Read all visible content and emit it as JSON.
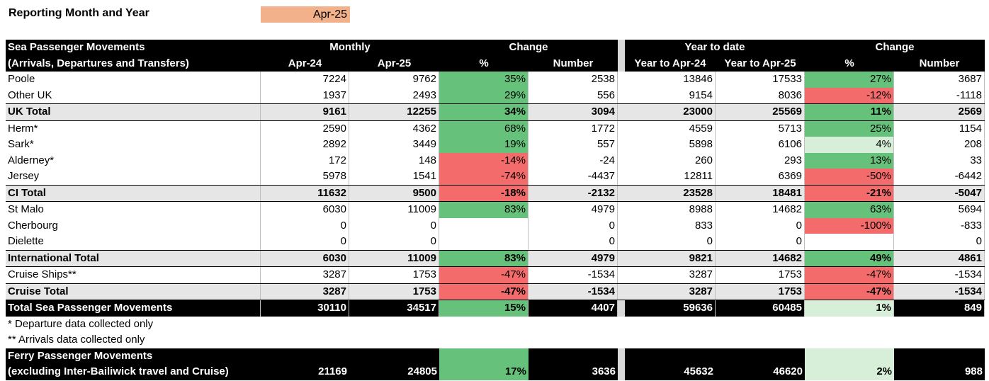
{
  "reporting": {
    "label": "Reporting Month and Year",
    "value": "Apr-25"
  },
  "header": {
    "row1": {
      "title": "Sea Passenger Movements",
      "monthly": "Monthly",
      "change": "Change",
      "ytd": "Year to date",
      "change2": "Change"
    },
    "row2": {
      "title": "(Arrivals, Departures and Transfers)",
      "c1": "Apr-24",
      "c2": "Apr-25",
      "c3": "%",
      "c4": "Number",
      "c5": "Year to Apr-24",
      "c6": "Year to Apr-25",
      "c7": "%",
      "c8": "Number"
    }
  },
  "rows": [
    {
      "name": "Poole",
      "v": [
        "7224",
        "9762",
        "35%",
        "2538",
        "13846",
        "17533",
        "27%",
        "3687"
      ]
    },
    {
      "name": "Other UK",
      "v": [
        "1937",
        "2493",
        "29%",
        "556",
        "9154",
        "8036",
        "-12%",
        "-1118"
      ]
    },
    {
      "name": "UK Total",
      "v": [
        "9161",
        "12255",
        "34%",
        "3094",
        "23000",
        "25569",
        "11%",
        "2569"
      ]
    },
    {
      "name": "Herm*",
      "v": [
        "2590",
        "4362",
        "68%",
        "1772",
        "4559",
        "5713",
        "25%",
        "1154"
      ]
    },
    {
      "name": "Sark*",
      "v": [
        "2892",
        "3449",
        "19%",
        "557",
        "5898",
        "6106",
        "4%",
        "208"
      ]
    },
    {
      "name": "Alderney*",
      "v": [
        "172",
        "148",
        "-14%",
        "-24",
        "260",
        "293",
        "13%",
        "33"
      ]
    },
    {
      "name": "Jersey",
      "v": [
        "5978",
        "1541",
        "-74%",
        "-4437",
        "12811",
        "6369",
        "-50%",
        "-6442"
      ]
    },
    {
      "name": "CI Total",
      "v": [
        "11632",
        "9500",
        "-18%",
        "-2132",
        "23528",
        "18481",
        "-21%",
        "-5047"
      ]
    },
    {
      "name": "St Malo",
      "v": [
        "6030",
        "11009",
        "83%",
        "4979",
        "8988",
        "14682",
        "63%",
        "5694"
      ]
    },
    {
      "name": "Cherbourg",
      "v": [
        "0",
        "0",
        "",
        "0",
        "833",
        "0",
        "-100%",
        "-833"
      ]
    },
    {
      "name": "Dielette",
      "v": [
        "0",
        "0",
        "",
        "0",
        "0",
        "0",
        "",
        "0"
      ]
    },
    {
      "name": "International Total",
      "v": [
        "6030",
        "11009",
        "83%",
        "4979",
        "9821",
        "14682",
        "49%",
        "4861"
      ]
    },
    {
      "name": "Cruise Ships**",
      "v": [
        "3287",
        "1753",
        "-47%",
        "-1534",
        "3287",
        "1753",
        "-47%",
        "-1534"
      ]
    },
    {
      "name": "Cruise Total",
      "v": [
        "3287",
        "1753",
        "-47%",
        "-1534",
        "3287",
        "1753",
        "-47%",
        "-1534"
      ]
    },
    {
      "name": "Total Sea Passenger Movements",
      "v": [
        "30110",
        "34517",
        "15%",
        "4407",
        "59636",
        "60485",
        "1%",
        "849"
      ]
    }
  ],
  "notes": [
    "* Departure data collected only",
    "** Arrivals data collected only"
  ],
  "ferry": {
    "title1": "Ferry Passenger Movements",
    "title2": "(excluding Inter-Bailiwick travel and Cruise)",
    "v": [
      "21169",
      "24805",
      "17%",
      "3636",
      "45632",
      "46620",
      "2%",
      "988"
    ]
  },
  "colors": {
    "green": "#66c27a",
    "red": "#f36b6b",
    "light_green": "#d7efd8",
    "orange": "#f2b08b"
  }
}
